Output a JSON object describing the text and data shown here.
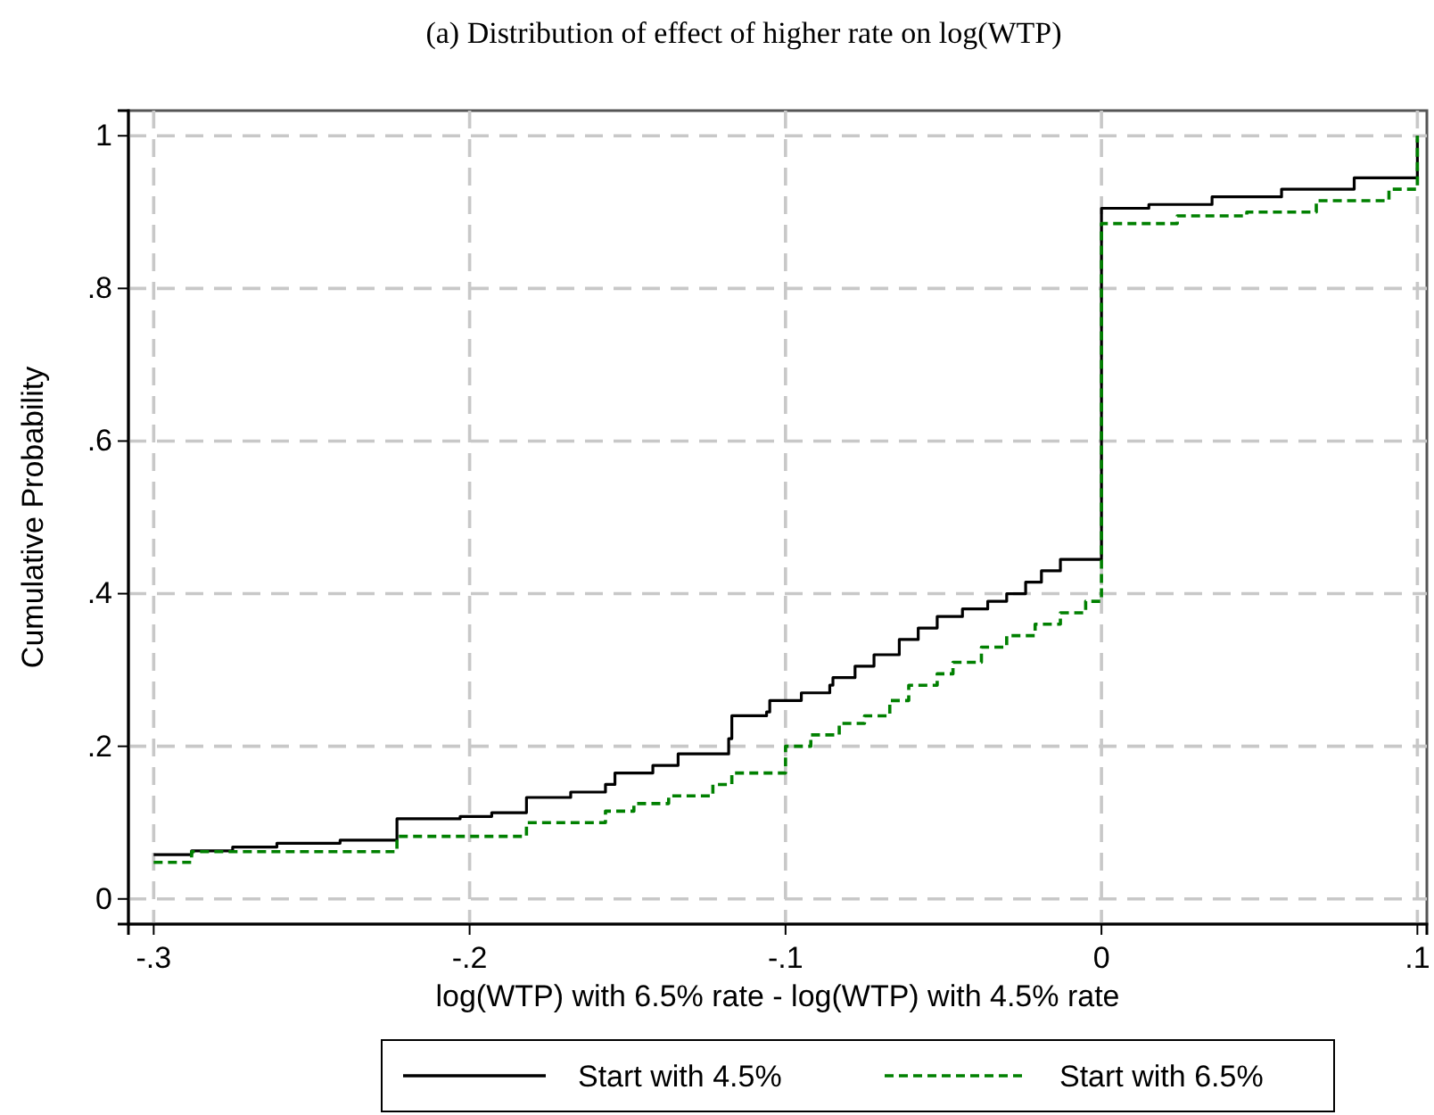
{
  "chart_data": {
    "type": "step",
    "title": "(a)  Distribution of effect of higher rate on log(WTP)",
    "xlabel": "log(WTP) with 6.5% rate - log(WTP) with 4.5% rate",
    "ylabel": "Cumulative Probability",
    "xlim": [
      -0.308,
      0.103
    ],
    "ylim": [
      -0.033,
      1.033
    ],
    "xticks": [
      {
        "value": -0.3,
        "label": "-.3"
      },
      {
        "value": -0.2,
        "label": "-.2"
      },
      {
        "value": -0.1,
        "label": "-.1"
      },
      {
        "value": 0,
        "label": "0"
      },
      {
        "value": 0.1,
        "label": ".1"
      }
    ],
    "yticks": [
      0,
      {
        "value": 0.2,
        "label": ".2"
      },
      {
        "value": 0.4,
        "label": ".4"
      },
      {
        "value": 0.6,
        "label": ".6"
      },
      {
        "value": 0.8,
        "label": ".8"
      },
      1
    ],
    "grid": true,
    "legend": "bottom",
    "series": [
      {
        "name": "Start with 4.5%",
        "color": "#000000",
        "line_style": "solid",
        "x": [
          -0.3,
          -0.288,
          -0.275,
          -0.261,
          -0.241,
          -0.223,
          -0.203,
          -0.193,
          -0.182,
          -0.168,
          -0.157,
          -0.154,
          -0.142,
          -0.134,
          -0.118,
          -0.117,
          -0.106,
          -0.105,
          -0.095,
          -0.086,
          -0.085,
          -0.078,
          -0.072,
          -0.064,
          -0.058,
          -0.052,
          -0.044,
          -0.036,
          -0.03,
          -0.024,
          -0.019,
          -0.013,
          0,
          0.015,
          0.035,
          0.057,
          0.08,
          0.1,
          0.1
        ],
        "values": [
          0.058,
          0.063,
          0.068,
          0.073,
          0.077,
          0.105,
          0.108,
          0.113,
          0.133,
          0.14,
          0.15,
          0.165,
          0.175,
          0.19,
          0.21,
          0.24,
          0.245,
          0.26,
          0.27,
          0.28,
          0.29,
          0.305,
          0.32,
          0.34,
          0.355,
          0.37,
          0.38,
          0.39,
          0.4,
          0.415,
          0.43,
          0.445,
          0.905,
          0.91,
          0.92,
          0.93,
          0.945,
          0.95,
          1.0
        ]
      },
      {
        "name": "Start with 6.5%",
        "color": "#008000",
        "line_style": "dashed",
        "x": [
          -0.3,
          -0.288,
          -0.223,
          -0.182,
          -0.157,
          -0.148,
          -0.137,
          -0.123,
          -0.117,
          -0.1,
          -0.092,
          -0.083,
          -0.075,
          -0.067,
          -0.061,
          -0.052,
          -0.047,
          -0.038,
          -0.03,
          -0.021,
          -0.013,
          -0.005,
          0,
          0.012,
          0.024,
          0.046,
          0.068,
          0.091,
          0.1,
          0.1
        ],
        "values": [
          0.048,
          0.062,
          0.082,
          0.1,
          0.115,
          0.125,
          0.135,
          0.15,
          0.165,
          0.2,
          0.215,
          0.23,
          0.24,
          0.26,
          0.28,
          0.295,
          0.31,
          0.33,
          0.345,
          0.36,
          0.375,
          0.39,
          0.885,
          0.885,
          0.895,
          0.9,
          0.915,
          0.93,
          0.935,
          1.0
        ]
      }
    ]
  }
}
